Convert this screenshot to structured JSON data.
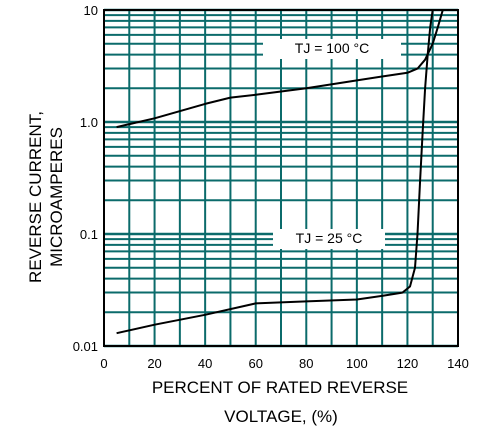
{
  "chart_data": {
    "type": "line",
    "title": "",
    "xlabel_line1": "PERCENT OF RATED REVERSE",
    "xlabel_line2": "VOLTAGE, (%)",
    "ylabel_line1": "REVERSE CURRENT,",
    "ylabel_line2": "MICROAMPERES",
    "xlim": [
      0,
      140
    ],
    "ylim": [
      0.01,
      10
    ],
    "yscale": "log",
    "grid": true,
    "grid_color": "#0b6b6b",
    "line_color": "#000000",
    "x_ticks": [
      {
        "value": 0,
        "label": "0"
      },
      {
        "value": 20,
        "label": "20"
      },
      {
        "value": 40,
        "label": "40"
      },
      {
        "value": 60,
        "label": "60"
      },
      {
        "value": 80,
        "label": "80"
      },
      {
        "value": 100,
        "label": "100"
      },
      {
        "value": 120,
        "label": "120"
      },
      {
        "value": 140,
        "label": "140"
      }
    ],
    "y_ticks": [
      {
        "value": 0.01,
        "label": "0.01"
      },
      {
        "value": 0.1,
        "label": "0.1"
      },
      {
        "value": 1,
        "label": "1.0"
      },
      {
        "value": 10,
        "label": "10"
      }
    ],
    "series": [
      {
        "annotation": "TJ = 100 °C",
        "x": [
          5,
          20,
          40,
          50,
          60,
          80,
          100,
          110,
          120,
          124,
          127,
          130,
          132,
          134
        ],
        "y": [
          0.9,
          1.08,
          1.45,
          1.65,
          1.75,
          2.0,
          2.35,
          2.55,
          2.75,
          3.0,
          3.6,
          5.0,
          7.0,
          10.0
        ]
      },
      {
        "annotation": "TJ = 25 °C",
        "x": [
          5,
          20,
          40,
          60,
          80,
          100,
          110,
          118,
          121,
          123,
          124,
          125,
          126,
          127,
          128,
          129,
          130
        ],
        "y": [
          0.013,
          0.0155,
          0.019,
          0.024,
          0.025,
          0.026,
          0.028,
          0.03,
          0.034,
          0.05,
          0.1,
          0.3,
          0.8,
          2.0,
          4.0,
          7.0,
          10.0
        ]
      }
    ]
  }
}
